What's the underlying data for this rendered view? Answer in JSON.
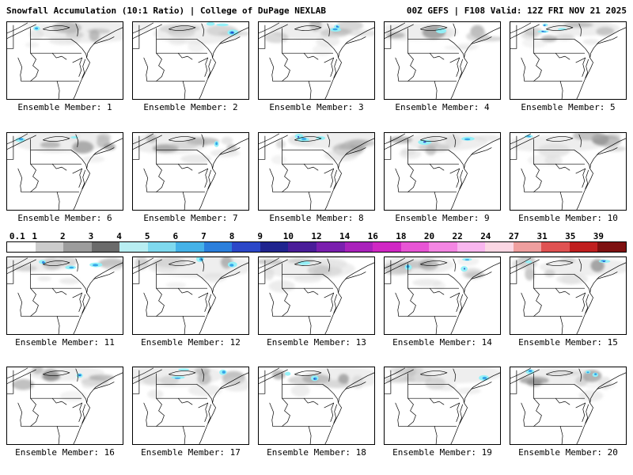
{
  "header": {
    "left": "Snowfall Accumulation (10:1 Ratio) | College of DuPage NEXLAB",
    "right": "00Z GEFS | F108 Valid: 12Z FRI NOV 21 2025"
  },
  "panels": {
    "labels": [
      "Ensemble Member: 1",
      "Ensemble Member: 2",
      "Ensemble Member: 3",
      "Ensemble Member: 4",
      "Ensemble Member: 5",
      "Ensemble Member: 6",
      "Ensemble Member: 7",
      "Ensemble Member: 8",
      "Ensemble Member: 9",
      "Ensemble Member: 10",
      "Ensemble Member: 11",
      "Ensemble Member: 12",
      "Ensemble Member: 13",
      "Ensemble Member: 14",
      "Ensemble Member: 15",
      "Ensemble Member: 16",
      "Ensemble Member: 17",
      "Ensemble Member: 18",
      "Ensemble Member: 19",
      "Ensemble Member: 20"
    ]
  },
  "colorbar": {
    "ticks": [
      "0.1",
      "1",
      "2",
      "3",
      "4",
      "5",
      "6",
      "7",
      "8",
      "9",
      "10",
      "12",
      "14",
      "16",
      "18",
      "20",
      "22",
      "24",
      "27",
      "31",
      "35",
      "39"
    ],
    "colors": [
      "#ffffff",
      "#cccccc",
      "#9c9c9c",
      "#6b6b6b",
      "#b8eef2",
      "#7fd9ee",
      "#45b2e8",
      "#2b7fdc",
      "#2b47c8",
      "#20248f",
      "#4a1d99",
      "#7a1fae",
      "#a921bb",
      "#d027c4",
      "#e855d5",
      "#f486e3",
      "#f9b6ef",
      "#fbd7e4",
      "#ef9f9f",
      "#e05252",
      "#c01f1f",
      "#7e1010"
    ]
  },
  "map": {
    "land_color": "#ffffff",
    "border_color": "#000000",
    "shading_grays": [
      "#d9d9d9",
      "#bfbfbf",
      "#a6a6a6",
      "#8c8c8c"
    ],
    "accumulation_cyan": "#90f0f8",
    "accumulation_blue": "#2f9fe8",
    "accumulation_deep_blue": "#2b47c8"
  }
}
